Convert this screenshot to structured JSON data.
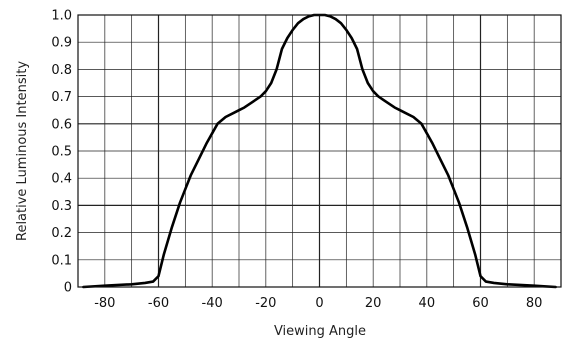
{
  "chart_data": {
    "type": "line",
    "xlabel": "Viewing Angle",
    "ylabel": "Relative Luminous Intensity",
    "xlim": [
      -90,
      90
    ],
    "ylim": [
      0,
      1.0
    ],
    "x_tick_labels": [
      "-80",
      "-60",
      "-40",
      "-20",
      "0",
      "20",
      "40",
      "60",
      "80"
    ],
    "y_tick_labels": [
      "0",
      "0.1",
      "0.2",
      "0.3",
      "0.4",
      "0.5",
      "0.6",
      "0.7",
      "0.8",
      "0.9",
      "1.0"
    ],
    "grid": true,
    "series": [
      {
        "color": "#000000",
        "x": [
          -88,
          -80,
          -70,
          -65,
          -62,
          -60,
          -58,
          -55,
          -52,
          -50,
          -48,
          -45,
          -42,
          -40,
          -38,
          -35,
          -32,
          -30,
          -28,
          -25,
          -22,
          -20,
          -18,
          -16,
          -14,
          -12,
          -10,
          -8,
          -6,
          -4,
          -2,
          0,
          2,
          4,
          6,
          8,
          10,
          12,
          14,
          16,
          18,
          20,
          22,
          25,
          28,
          30,
          32,
          35,
          38,
          40,
          42,
          45,
          48,
          50,
          52,
          55,
          58,
          60,
          62,
          65,
          70,
          80,
          88
        ],
        "y": [
          0.0,
          0.005,
          0.01,
          0.015,
          0.02,
          0.04,
          0.12,
          0.22,
          0.31,
          0.36,
          0.41,
          0.47,
          0.53,
          0.565,
          0.6,
          0.625,
          0.64,
          0.65,
          0.66,
          0.68,
          0.7,
          0.72,
          0.75,
          0.8,
          0.875,
          0.915,
          0.945,
          0.97,
          0.985,
          0.995,
          1.0,
          1.0,
          1.0,
          0.995,
          0.985,
          0.97,
          0.945,
          0.915,
          0.875,
          0.8,
          0.75,
          0.72,
          0.7,
          0.68,
          0.66,
          0.65,
          0.64,
          0.625,
          0.6,
          0.565,
          0.53,
          0.47,
          0.41,
          0.36,
          0.31,
          0.22,
          0.12,
          0.04,
          0.02,
          0.015,
          0.01,
          0.005,
          0.0
        ]
      }
    ]
  }
}
